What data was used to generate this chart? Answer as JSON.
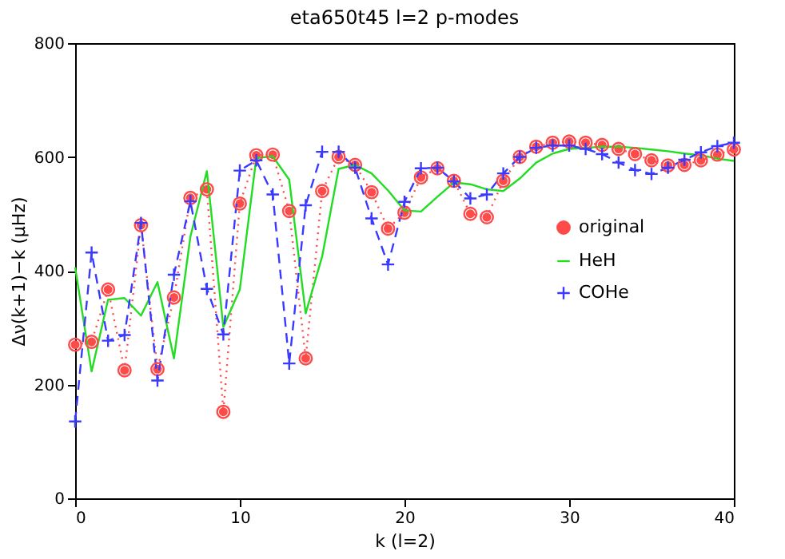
{
  "chart_data": {
    "type": "line",
    "title": "eta650t45    l=2    p-modes",
    "xlabel": "k (l=2)",
    "ylabel": "Δν(k+1)−k (μHz)",
    "x": [
      0,
      1,
      2,
      3,
      4,
      5,
      6,
      7,
      8,
      9,
      10,
      11,
      12,
      13,
      14,
      15,
      16,
      17,
      18,
      19,
      20,
      21,
      22,
      23,
      24,
      25,
      26,
      27,
      28,
      29,
      30,
      31,
      32,
      33,
      34,
      35,
      36,
      37,
      38,
      39,
      40
    ],
    "xlim": [
      0,
      40
    ],
    "xticks": [
      0,
      10,
      20,
      30,
      40
    ],
    "ylim": [
      0,
      800
    ],
    "yticks": [
      0,
      200,
      400,
      600,
      800
    ],
    "grid": false,
    "legend": "right",
    "series": [
      {
        "name": "original",
        "color": "#ff4a4a",
        "marker": "circle",
        "line_style": "dotted",
        "values": [
          270,
          275,
          367,
          225,
          480,
          227,
          353,
          528,
          543,
          152,
          518,
          603,
          604,
          505,
          246,
          540,
          600,
          586,
          538,
          474,
          502,
          564,
          580,
          558,
          500,
          494,
          558,
          600,
          618,
          625,
          627,
          625,
          621,
          614,
          605,
          594,
          585,
          586,
          594,
          604,
          613
        ]
      },
      {
        "name": "HeH",
        "color": "#22dd22",
        "marker": "none",
        "line_style": "solid",
        "values": [
          406,
          223,
          349,
          352,
          321,
          380,
          246,
          460,
          575,
          301,
          367,
          598,
          601,
          560,
          325,
          425,
          579,
          586,
          571,
          541,
          506,
          504,
          530,
          555,
          552,
          543,
          540,
          562,
          590,
          606,
          614,
          616,
          618,
          618,
          616,
          613,
          610,
          606,
          603,
          597,
          593
        ]
      },
      {
        "name": "COHe",
        "color": "#3a3aff",
        "marker": "cross",
        "line_style": "dashed",
        "values": [
          135,
          432,
          277,
          287,
          484,
          207,
          393,
          522,
          368,
          288,
          576,
          594,
          534,
          237,
          515,
          609,
          609,
          581,
          492,
          411,
          521,
          580,
          581,
          557,
          527,
          534,
          571,
          600,
          616,
          620,
          620,
          614,
          605,
          590,
          577,
          570,
          581,
          595,
          608,
          619,
          625
        ]
      }
    ]
  }
}
